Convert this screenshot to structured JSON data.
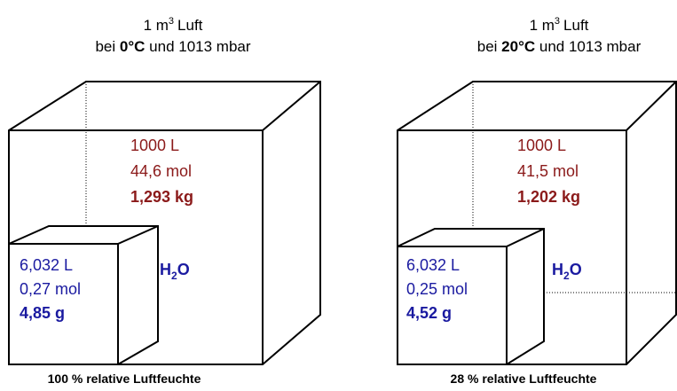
{
  "panels": [
    {
      "title": {
        "pre": "1 m",
        "sup": "3",
        "post": "Luft"
      },
      "condition": {
        "pre": "bei",
        "temp": "0°C",
        "post": "und 1013 mbar"
      },
      "air": {
        "volume": "1000 L",
        "amount": "44,6 mol",
        "mass": "1,293 kg"
      },
      "water": {
        "volume": "6,032 L",
        "amount": "0,27 mol",
        "mass": "4,85 g"
      },
      "water_label": {
        "pre": "H",
        "sub": "2",
        "post": "O"
      },
      "caption": "100 % relative Luftfeuchte"
    },
    {
      "title": {
        "pre": "1 m",
        "sup": "3",
        "post": "Luft"
      },
      "condition": {
        "pre": "bei",
        "temp": "20°C",
        "post": "und 1013 mbar"
      },
      "air": {
        "volume": "1000 L",
        "amount": "41,5 mol",
        "mass": "1,202 kg"
      },
      "water": {
        "volume": "6,032 L",
        "amount": "0,25 mol",
        "mass": "4,52 g"
      },
      "water_label": {
        "pre": "H",
        "sub": "2",
        "post": "O"
      },
      "caption": "28 % relative Luftfeuchte"
    }
  ]
}
